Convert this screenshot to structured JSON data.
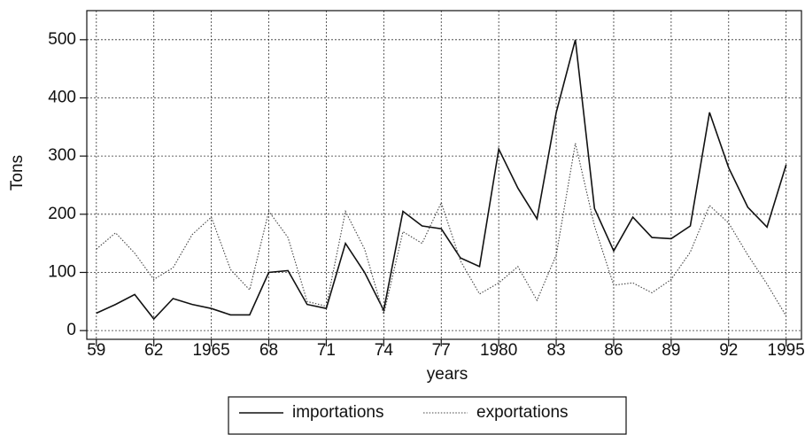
{
  "chart_data": {
    "type": "line",
    "x_label": "years",
    "y_label": "Tons",
    "x": [
      1959,
      1960,
      1961,
      1962,
      1963,
      1964,
      1965,
      1966,
      1967,
      1968,
      1969,
      1970,
      1971,
      1972,
      1973,
      1974,
      1975,
      1976,
      1977,
      1978,
      1979,
      1980,
      1981,
      1982,
      1983,
      1984,
      1985,
      1986,
      1987,
      1988,
      1989,
      1990,
      1991,
      1992,
      1993,
      1994,
      1995
    ],
    "series": [
      {
        "name": "importations",
        "color": "#111111",
        "dash": "solid",
        "values": [
          30,
          45,
          62,
          20,
          55,
          45,
          38,
          27,
          27,
          100,
          103,
          45,
          38,
          150,
          100,
          35,
          205,
          180,
          175,
          125,
          110,
          312,
          245,
          192,
          375,
          500,
          210,
          137,
          195,
          160,
          158,
          180,
          375,
          280,
          212,
          178,
          285
        ]
      },
      {
        "name": "exportations",
        "color": "#444444",
        "dash": "dotted",
        "values": [
          140,
          168,
          133,
          88,
          108,
          165,
          195,
          105,
          70,
          205,
          160,
          50,
          42,
          205,
          140,
          28,
          170,
          150,
          220,
          120,
          63,
          82,
          110,
          52,
          130,
          322,
          180,
          78,
          82,
          65,
          88,
          135,
          215,
          185,
          130,
          80,
          25
        ]
      }
    ],
    "xlim": [
      1958.5,
      1995.8
    ],
    "xticks": [
      {
        "value": 1959,
        "label": "59"
      },
      {
        "value": 1962,
        "label": "62"
      },
      1965,
      {
        "value": 1968,
        "label": "68"
      },
      {
        "value": 1971,
        "label": "71"
      },
      {
        "value": 1974,
        "label": "74"
      },
      {
        "value": 1977,
        "label": "77"
      },
      1980,
      {
        "value": 1983,
        "label": "83"
      },
      {
        "value": 1986,
        "label": "86"
      },
      {
        "value": 1989,
        "label": "89"
      },
      {
        "value": 1992,
        "label": "92"
      },
      1995
    ],
    "ylim": [
      -15,
      550
    ],
    "yticks": [
      0,
      100,
      200,
      300,
      400,
      500
    ],
    "grid": true,
    "legend": "bottom"
  }
}
